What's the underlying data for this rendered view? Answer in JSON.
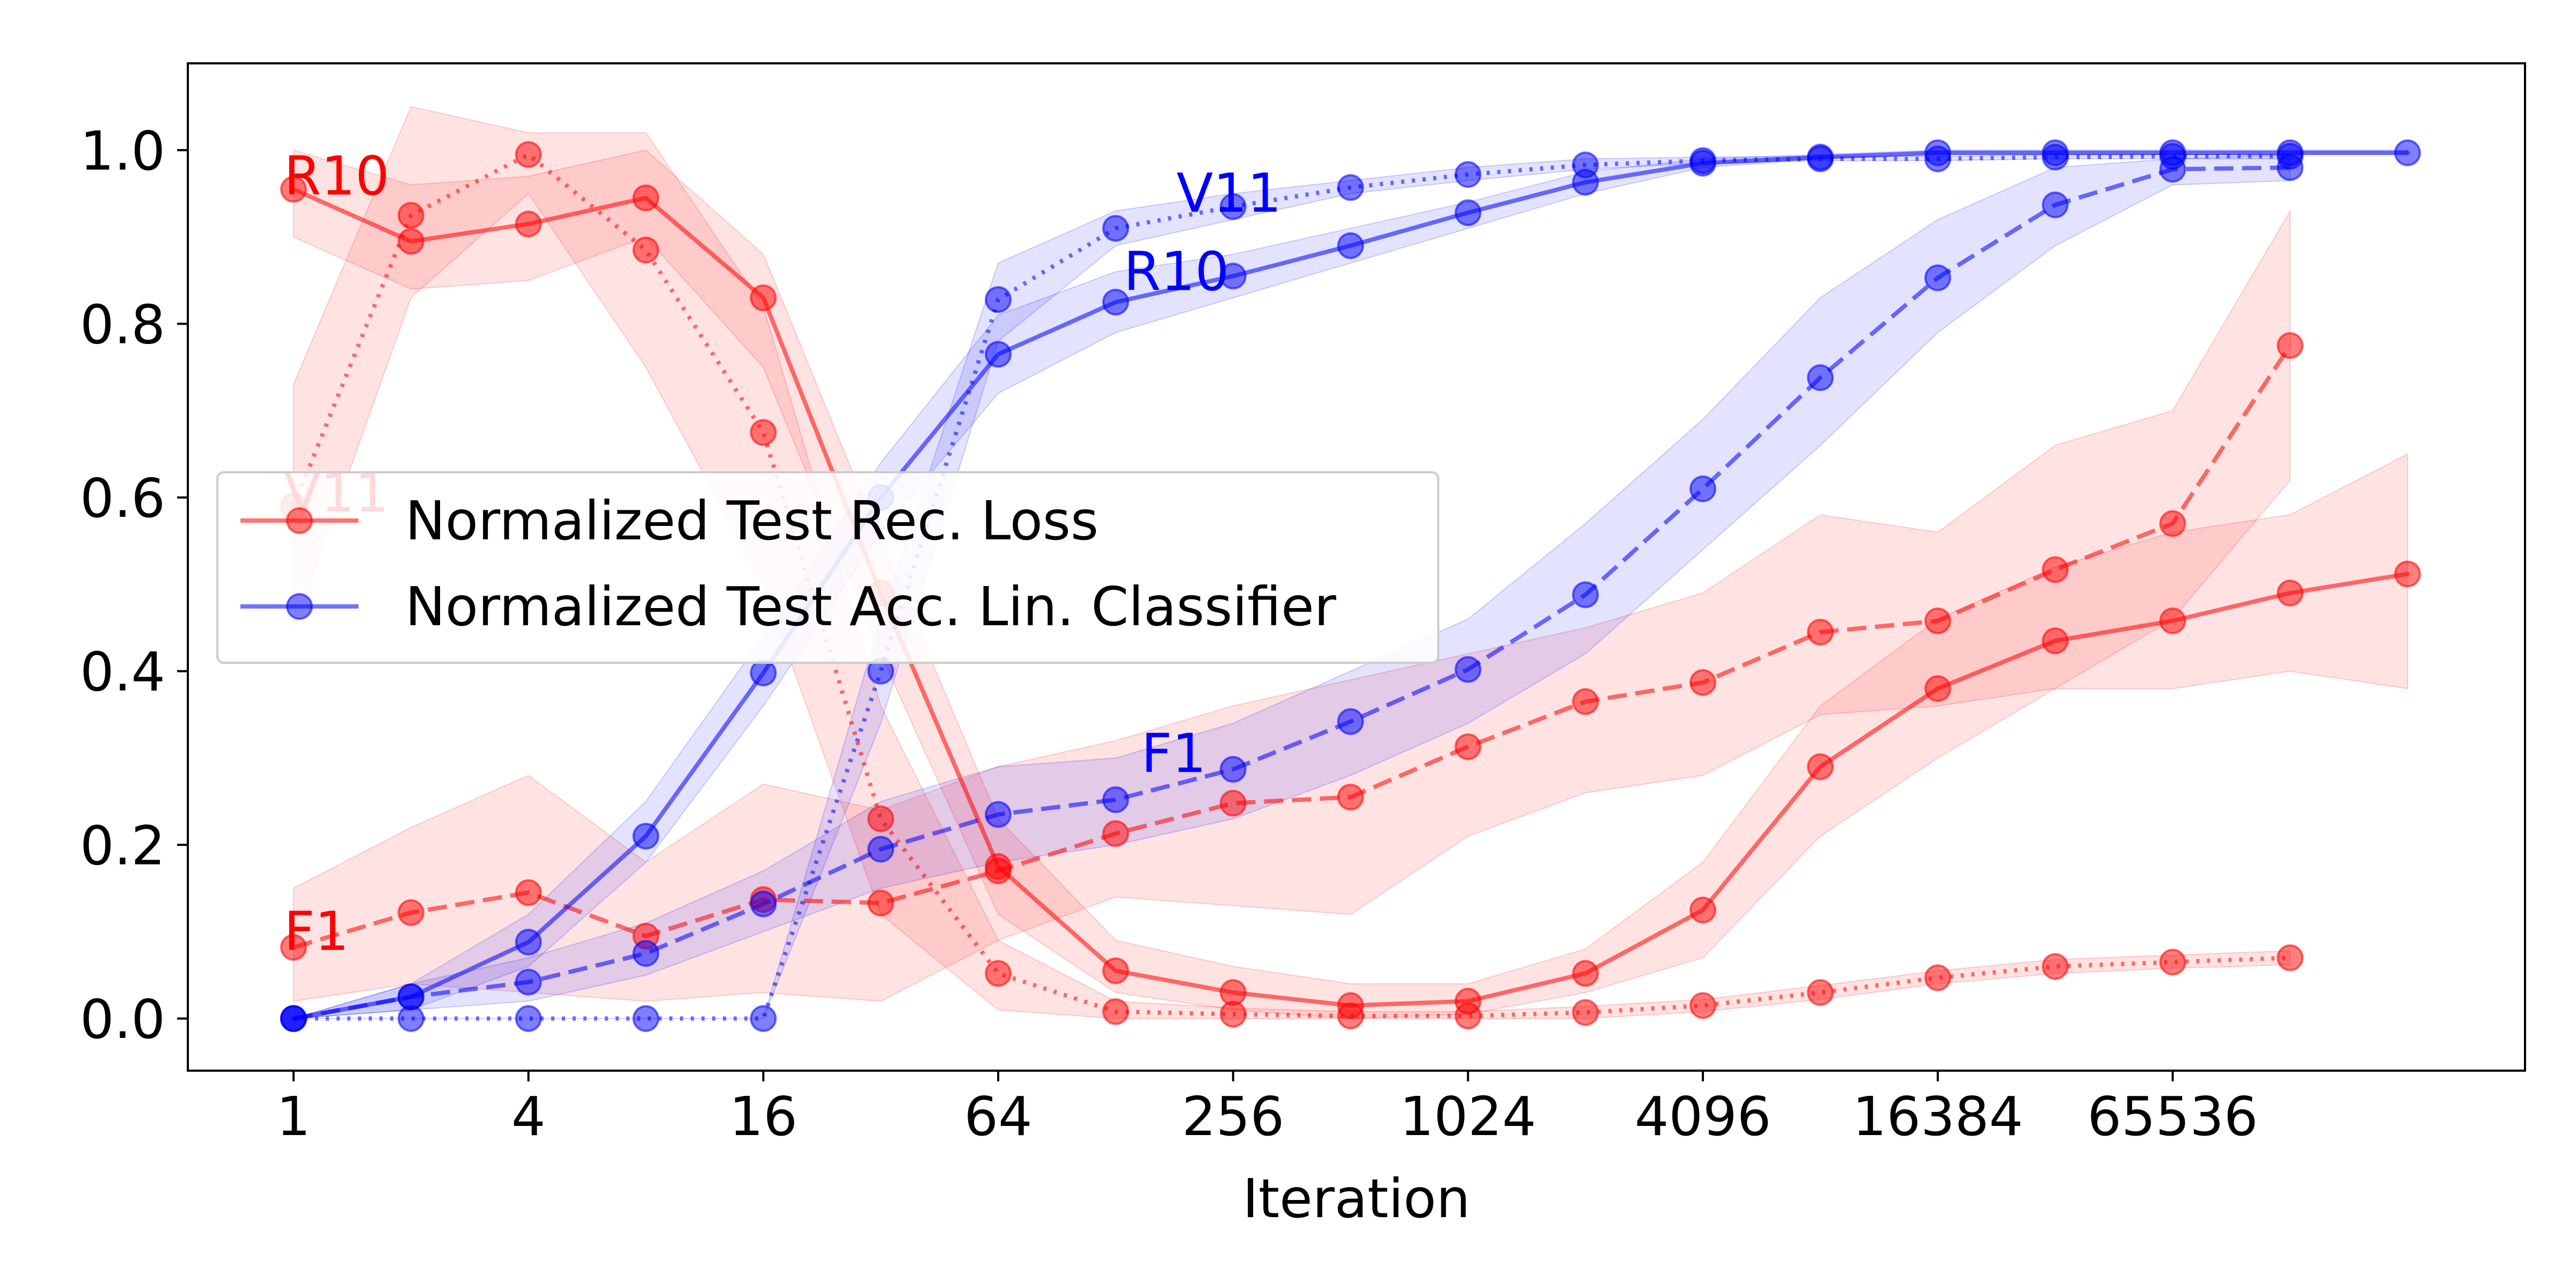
{
  "chart_data": {
    "type": "line",
    "xscale": "log2",
    "xlabel": "Iteration",
    "ylabel": "",
    "ylim": [
      -0.06,
      1.1
    ],
    "xlim_log2": [
      -0.9,
      19.0
    ],
    "xticks": [
      1,
      4,
      16,
      64,
      256,
      1024,
      4096,
      16384,
      65536
    ],
    "xtick_labels": [
      "1",
      "4",
      "16",
      "64",
      "256",
      "1024",
      "4096",
      "16384",
      "65536"
    ],
    "yticks": [
      0.0,
      0.2,
      0.4,
      0.6,
      0.8,
      1.0
    ],
    "ytick_labels": [
      "0.0",
      "0.2",
      "0.4",
      "0.6",
      "0.8",
      "1.0"
    ],
    "colors": {
      "loss": "#ff0000",
      "acc": "#0000ff",
      "text": "#000000"
    },
    "legend": {
      "placement": "center-left",
      "entries": [
        {
          "label": "Normalized Test Rec. Loss",
          "color": "#ff0000"
        },
        {
          "label": "Normalized Test Acc. Lin. Classifier",
          "color": "#0000ff"
        }
      ]
    },
    "series": [
      {
        "name": "R10 loss",
        "metric": "loss",
        "dash": "solid",
        "x_log2": [
          0,
          1,
          2,
          3,
          4,
          5,
          6,
          7,
          8,
          9,
          10,
          11,
          12,
          13,
          14,
          15,
          16,
          17,
          18
        ],
        "values": [
          0.955,
          0.895,
          0.915,
          0.945,
          0.83,
          0.49,
          0.175,
          0.055,
          0.03,
          0.015,
          0.02,
          0.052,
          0.125,
          0.29,
          0.38,
          0.435,
          0.458,
          0.49,
          0.512
        ],
        "lower": [
          0.9,
          0.84,
          0.85,
          0.9,
          0.75,
          0.42,
          0.12,
          0.03,
          0.01,
          0.0,
          0.005,
          0.03,
          0.07,
          0.21,
          0.3,
          0.38,
          0.38,
          0.4,
          0.38
        ],
        "upper": [
          1.0,
          0.96,
          0.97,
          1.0,
          0.88,
          0.55,
          0.23,
          0.09,
          0.06,
          0.04,
          0.04,
          0.08,
          0.18,
          0.36,
          0.46,
          0.52,
          0.56,
          0.58,
          0.65
        ]
      },
      {
        "name": "V11 loss",
        "metric": "loss",
        "dash": "dotted",
        "x_log2": [
          0,
          1,
          2,
          3,
          4,
          5,
          6,
          7,
          8,
          9,
          10,
          11,
          12,
          13,
          14,
          15,
          16,
          17
        ],
        "values": [
          0.59,
          0.925,
          0.995,
          0.885,
          0.675,
          0.23,
          0.052,
          0.008,
          0.005,
          0.003,
          0.003,
          0.007,
          0.015,
          0.03,
          0.047,
          0.06,
          0.065,
          0.07
        ],
        "lower": [
          0.45,
          0.83,
          0.95,
          0.75,
          0.5,
          0.12,
          0.01,
          0.0,
          0.0,
          0.0,
          0.0,
          0.0,
          0.008,
          0.022,
          0.04,
          0.052,
          0.058,
          0.062
        ],
        "upper": [
          0.73,
          1.05,
          1.02,
          1.02,
          0.82,
          0.36,
          0.09,
          0.02,
          0.012,
          0.008,
          0.008,
          0.014,
          0.022,
          0.038,
          0.055,
          0.068,
          0.073,
          0.078
        ]
      },
      {
        "name": "F1 loss",
        "metric": "loss",
        "dash": "dashed",
        "x_log2": [
          0,
          1,
          2,
          3,
          4,
          5,
          6,
          7,
          8,
          9,
          10,
          11,
          12,
          13,
          14,
          15,
          16,
          17
        ],
        "values": [
          0.082,
          0.122,
          0.145,
          0.095,
          0.137,
          0.133,
          0.17,
          0.213,
          0.248,
          0.255,
          0.313,
          0.365,
          0.387,
          0.445,
          0.458,
          0.517,
          0.57,
          0.775
        ],
        "lower": [
          0.02,
          0.04,
          0.03,
          0.02,
          0.03,
          0.02,
          0.09,
          0.14,
          0.13,
          0.12,
          0.21,
          0.26,
          0.28,
          0.35,
          0.36,
          0.38,
          0.46,
          0.62
        ],
        "upper": [
          0.15,
          0.22,
          0.28,
          0.18,
          0.27,
          0.24,
          0.29,
          0.32,
          0.36,
          0.39,
          0.42,
          0.45,
          0.49,
          0.58,
          0.56,
          0.66,
          0.7,
          0.93
        ]
      },
      {
        "name": "R10 acc",
        "metric": "acc",
        "dash": "solid",
        "x_log2": [
          0,
          1,
          2,
          3,
          4,
          5,
          6,
          7,
          8,
          9,
          10,
          11,
          12,
          13,
          14,
          15,
          16,
          17,
          18
        ],
        "values": [
          0.0,
          0.025,
          0.088,
          0.21,
          0.398,
          0.6,
          0.765,
          0.825,
          0.855,
          0.89,
          0.928,
          0.963,
          0.985,
          0.992,
          0.997,
          0.997,
          0.997,
          0.997,
          0.997
        ],
        "lower": [
          0.0,
          0.01,
          0.06,
          0.18,
          0.36,
          0.56,
          0.72,
          0.79,
          0.83,
          0.87,
          0.91,
          0.95,
          0.98,
          0.99,
          0.995,
          0.995,
          0.995,
          0.995,
          0.995
        ],
        "upper": [
          0.0,
          0.04,
          0.12,
          0.25,
          0.44,
          0.64,
          0.81,
          0.86,
          0.88,
          0.91,
          0.94,
          0.975,
          0.99,
          0.995,
          1.0,
          1.0,
          1.0,
          1.0,
          1.0
        ]
      },
      {
        "name": "V11 acc",
        "metric": "acc",
        "dash": "dotted",
        "x_log2": [
          0,
          1,
          2,
          3,
          4,
          5,
          6,
          7,
          8,
          9,
          10,
          11,
          12,
          13,
          14,
          15,
          16,
          17
        ],
        "values": [
          0.0,
          0.0,
          0.0,
          0.0,
          0.0,
          0.4,
          0.828,
          0.91,
          0.935,
          0.957,
          0.972,
          0.983,
          0.988,
          0.99,
          0.99,
          0.992,
          0.993,
          0.993
        ],
        "lower": [
          0.0,
          0.0,
          0.0,
          0.0,
          0.0,
          0.34,
          0.78,
          0.89,
          0.92,
          0.95,
          0.965,
          0.978,
          0.985,
          0.988,
          0.988,
          0.99,
          0.99,
          0.99
        ],
        "upper": [
          0.0,
          0.0,
          0.0,
          0.0,
          0.0,
          0.46,
          0.87,
          0.93,
          0.95,
          0.965,
          0.98,
          0.99,
          0.992,
          0.993,
          0.993,
          0.995,
          0.995,
          0.995
        ]
      },
      {
        "name": "F1 acc",
        "metric": "acc",
        "dash": "dashed",
        "x_log2": [
          0,
          1,
          2,
          3,
          4,
          5,
          6,
          7,
          8,
          9,
          10,
          11,
          12,
          13,
          14,
          15,
          16,
          17
        ],
        "values": [
          0.0,
          0.025,
          0.042,
          0.075,
          0.132,
          0.195,
          0.235,
          0.252,
          0.287,
          0.342,
          0.402,
          0.488,
          0.61,
          0.738,
          0.853,
          0.937,
          0.978,
          0.98
        ],
        "lower": [
          0.0,
          0.01,
          0.02,
          0.05,
          0.1,
          0.15,
          0.18,
          0.2,
          0.23,
          0.28,
          0.34,
          0.42,
          0.54,
          0.66,
          0.79,
          0.89,
          0.96,
          0.965
        ],
        "upper": [
          0.0,
          0.04,
          0.07,
          0.11,
          0.17,
          0.25,
          0.29,
          0.3,
          0.34,
          0.4,
          0.46,
          0.57,
          0.69,
          0.83,
          0.92,
          0.98,
          0.99,
          0.995
        ]
      }
    ],
    "annotations": [
      {
        "text": "R10",
        "color": "#ff0000",
        "x_log2": 0.0,
        "y": 0.97
      },
      {
        "text": "V11",
        "color": "#ff0000",
        "x_log2": 0.0,
        "y": 0.605
      },
      {
        "text": "F1",
        "color": "#ff0000",
        "x_log2": 0.0,
        "y": 0.1
      },
      {
        "text": "V11",
        "color": "#0000ff",
        "x_log2": 7.6,
        "y": 0.95
      },
      {
        "text": "R10",
        "color": "#0000ff",
        "x_log2": 7.15,
        "y": 0.86
      },
      {
        "text": "F1",
        "color": "#0000ff",
        "x_log2": 7.3,
        "y": 0.305
      }
    ]
  }
}
